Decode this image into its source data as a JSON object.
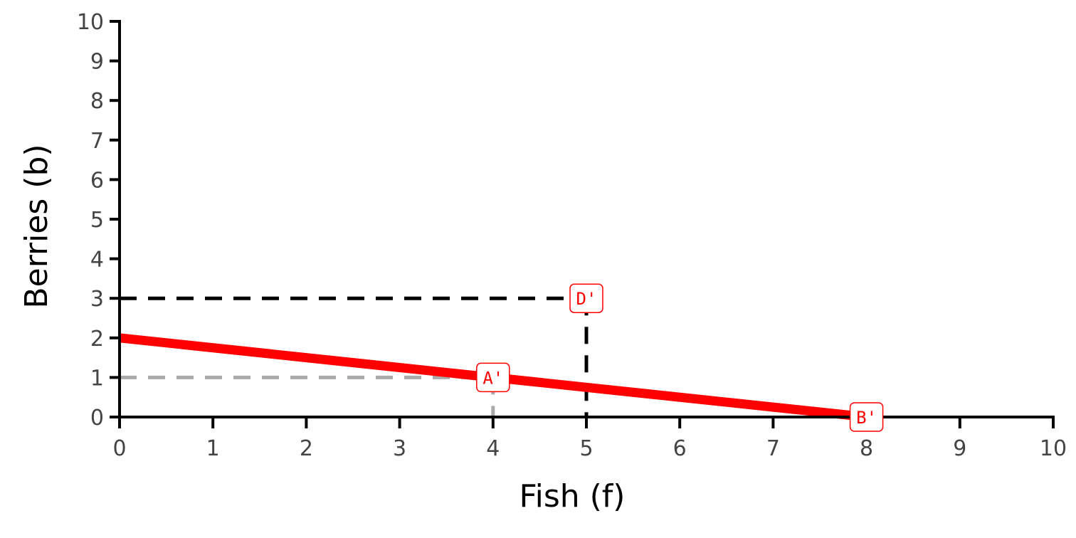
{
  "chart_data": {
    "type": "line",
    "xlabel": "Fish (f)",
    "ylabel": "Berries (b)",
    "xlim": [
      0,
      10
    ],
    "ylim": [
      0,
      10
    ],
    "x_ticks": [
      "0",
      "1",
      "2",
      "3",
      "4",
      "5",
      "6",
      "7",
      "8",
      "9",
      "10"
    ],
    "y_ticks": [
      "0",
      "1",
      "2",
      "3",
      "4",
      "5",
      "6",
      "7",
      "8",
      "9",
      "10"
    ],
    "grid": false,
    "series": [
      {
        "color": "#ff0000",
        "points": [
          [
            0,
            2
          ],
          [
            8,
            0
          ]
        ]
      }
    ],
    "guides": [
      {
        "color": "#aaaaaa",
        "point": [
          4,
          1
        ]
      },
      {
        "color": "#000000",
        "point": [
          5,
          3
        ]
      }
    ],
    "points": [
      {
        "label": "A'",
        "x": 4,
        "y": 1
      },
      {
        "label": "D'",
        "x": 5,
        "y": 3
      },
      {
        "label": "B'",
        "x": 8,
        "y": 0
      }
    ]
  }
}
